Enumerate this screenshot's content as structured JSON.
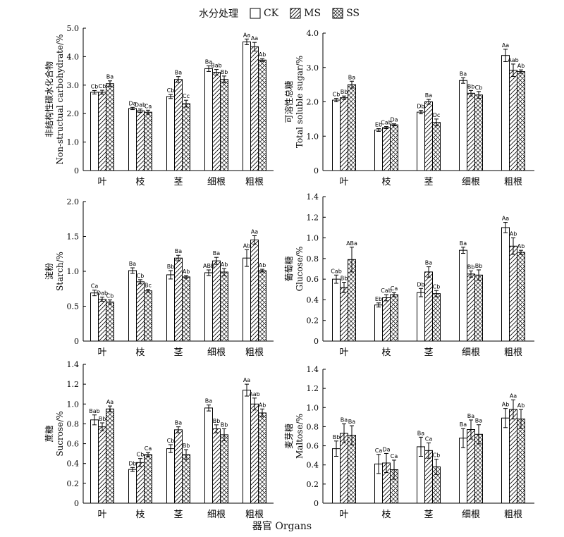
{
  "legend": {
    "title": "水分处理",
    "items": [
      {
        "label": "CK",
        "pattern": "none"
      },
      {
        "label": "MS",
        "pattern": "diag"
      },
      {
        "label": "SS",
        "pattern": "cross"
      }
    ]
  },
  "x_title": "器官 Organs",
  "chart_data": [
    {
      "type": "bar",
      "ylabel_cn": "非结构性碳水化合物",
      "ylabel_en": "Non-structual carbohydrate/%",
      "categories": [
        "叶",
        "枝",
        "茎",
        "细根",
        "粗根"
      ],
      "ylim": [
        0,
        5.0
      ],
      "yticks": [
        "0",
        "1.0",
        "2.0",
        "3.0",
        "4.0",
        "5.0"
      ],
      "series": [
        {
          "name": "CK",
          "values": [
            2.75,
            2.18,
            2.6,
            3.58,
            4.52
          ],
          "errors": [
            0.06,
            0.04,
            0.07,
            0.1,
            0.1
          ],
          "labels": [
            "Cb",
            "Da",
            "Cb",
            "Ba",
            "Aa"
          ]
        },
        {
          "name": "MS",
          "values": [
            2.75,
            2.1,
            3.2,
            3.45,
            4.35
          ],
          "errors": [
            0.07,
            0.06,
            0.1,
            0.1,
            0.15
          ],
          "labels": [
            "Cb",
            "Dab",
            "Ba",
            "Bab",
            "Aa"
          ]
        },
        {
          "name": "SS",
          "values": [
            3.05,
            2.05,
            2.35,
            3.2,
            3.88
          ],
          "errors": [
            0.1,
            0.07,
            0.12,
            0.12,
            0.05
          ],
          "labels": [
            "Ba",
            "Ca",
            "Cc",
            "Bb",
            "Ab"
          ]
        }
      ]
    },
    {
      "type": "bar",
      "ylabel_cn": "可溶性总糖",
      "ylabel_en": "Total soluble sugar/%",
      "categories": [
        "叶",
        "枝",
        "茎",
        "细根",
        "粗根"
      ],
      "ylim": [
        0,
        4.0
      ],
      "yticks": [
        "0",
        "1.0",
        "2.0",
        "3.0",
        "4.0"
      ],
      "series": [
        {
          "name": "CK",
          "values": [
            2.05,
            1.18,
            1.7,
            2.62,
            3.35
          ],
          "errors": [
            0.05,
            0.04,
            0.05,
            0.08,
            0.18
          ],
          "labels": [
            "Cb",
            "Eb",
            "Db",
            "Ba",
            "Aa"
          ]
        },
        {
          "name": "MS",
          "values": [
            2.12,
            1.25,
            2.0,
            2.25,
            2.92
          ],
          "errors": [
            0.05,
            0.03,
            0.07,
            0.08,
            0.18
          ],
          "labels": [
            "Bb",
            "Cab",
            "Ba",
            "Bb",
            "Aab"
          ]
        },
        {
          "name": "SS",
          "values": [
            2.5,
            1.33,
            1.4,
            2.2,
            2.88
          ],
          "errors": [
            0.1,
            0.03,
            0.1,
            0.1,
            0.05
          ],
          "labels": [
            "Ba",
            "Da",
            "Dc",
            "Cb",
            "Ab"
          ]
        }
      ]
    },
    {
      "type": "bar",
      "ylabel_cn": "淀粉",
      "ylabel_en": "Starch/%",
      "categories": [
        "叶",
        "枝",
        "茎",
        "细根",
        "粗根"
      ],
      "ylim": [
        0,
        2.0
      ],
      "yticks": [
        "0",
        "0.5",
        "1.0",
        "1.5",
        "2.0"
      ],
      "series": [
        {
          "name": "CK",
          "values": [
            0.69,
            1.01,
            0.95,
            0.98,
            1.19
          ],
          "errors": [
            0.04,
            0.04,
            0.06,
            0.04,
            0.12
          ],
          "labels": [
            "Ca",
            "Ba",
            "Bb",
            "ABb",
            "Ab"
          ]
        },
        {
          "name": "MS",
          "values": [
            0.6,
            0.85,
            1.19,
            1.15,
            1.45
          ],
          "errors": [
            0.03,
            0.03,
            0.04,
            0.05,
            0.06
          ],
          "labels": [
            "Dab",
            "Cb",
            "Ba",
            "Ba",
            "Aa"
          ]
        },
        {
          "name": "SS",
          "values": [
            0.56,
            0.72,
            0.92,
            0.99,
            1.01
          ],
          "errors": [
            0.03,
            0.02,
            0.02,
            0.05,
            0.02
          ],
          "labels": [
            "Cb",
            "Bc",
            "Ab",
            "Ab",
            "Ab"
          ]
        }
      ]
    },
    {
      "type": "bar",
      "ylabel_cn": "葡萄糖",
      "ylabel_en": "Glucose/%",
      "categories": [
        "叶",
        "枝",
        "茎",
        "细根",
        "粗根"
      ],
      "ylim": [
        0,
        1.4
      ],
      "yticks": [
        "0",
        "0.2",
        "0.4",
        "0.6",
        "0.8",
        "1.0",
        "1.2",
        "1.4"
      ],
      "series": [
        {
          "name": "CK",
          "values": [
            0.6,
            0.35,
            0.47,
            0.88,
            1.1
          ],
          "errors": [
            0.04,
            0.02,
            0.04,
            0.03,
            0.05
          ],
          "labels": [
            "Cab",
            "Eb",
            "Db",
            "Ba",
            "Aa"
          ]
        },
        {
          "name": "MS",
          "values": [
            0.52,
            0.42,
            0.67,
            0.65,
            0.92
          ],
          "errors": [
            0.05,
            0.03,
            0.05,
            0.03,
            0.08
          ],
          "labels": [
            "Bb",
            "Cab",
            "Ba",
            "Bb",
            "Ab"
          ]
        },
        {
          "name": "SS",
          "values": [
            0.79,
            0.45,
            0.46,
            0.64,
            0.86
          ],
          "errors": [
            0.12,
            0.02,
            0.03,
            0.05,
            0.02
          ],
          "labels": [
            "ABa",
            "Ca",
            "Cb",
            "Bb",
            "Ab"
          ]
        }
      ]
    },
    {
      "type": "bar",
      "ylabel_cn": "蔗糖",
      "ylabel_en": "Sucrose/%",
      "categories": [
        "叶",
        "枝",
        "茎",
        "细根",
        "粗根"
      ],
      "ylim": [
        0,
        1.4
      ],
      "yticks": [
        "0",
        "0.2",
        "0.4",
        "0.6",
        "0.8",
        "1.0",
        "1.2",
        "1.4"
      ],
      "series": [
        {
          "name": "CK",
          "values": [
            0.84,
            0.34,
            0.55,
            0.96,
            1.14
          ],
          "errors": [
            0.05,
            0.02,
            0.04,
            0.03,
            0.06
          ],
          "labels": [
            "Bab",
            "Db",
            "Cb",
            "Ba",
            "Aa"
          ]
        },
        {
          "name": "MS",
          "values": [
            0.77,
            0.41,
            0.74,
            0.75,
            1.0
          ],
          "errors": [
            0.04,
            0.04,
            0.03,
            0.04,
            0.06
          ],
          "labels": [
            "Bb",
            "Cb",
            "Ba",
            "Bb",
            "Aab"
          ]
        },
        {
          "name": "SS",
          "values": [
            0.95,
            0.49,
            0.49,
            0.69,
            0.91
          ],
          "errors": [
            0.03,
            0.02,
            0.05,
            0.06,
            0.04
          ],
          "labels": [
            "Aa",
            "Ca",
            "Bb",
            "Bb",
            "Ab"
          ]
        }
      ]
    },
    {
      "type": "bar",
      "ylabel_cn": "麦芽糖",
      "ylabel_en": "Maltose/%",
      "categories": [
        "叶",
        "枝",
        "茎",
        "细根",
        "粗根"
      ],
      "ylim": [
        0,
        1.4
      ],
      "yticks": [
        "0",
        "0.2",
        "0.4",
        "0.6",
        "0.8",
        "1.0",
        "1.2",
        "1.4"
      ],
      "series": [
        {
          "name": "CK",
          "values": [
            0.57,
            0.41,
            0.59,
            0.68,
            0.89
          ],
          "errors": [
            0.08,
            0.1,
            0.1,
            0.1,
            0.1
          ],
          "labels": [
            "Bb",
            "Ca",
            "Ba",
            "Ba",
            "Ab"
          ]
        },
        {
          "name": "MS",
          "values": [
            0.73,
            0.42,
            0.55,
            0.77,
            0.98
          ],
          "errors": [
            0.1,
            0.1,
            0.08,
            0.1,
            0.1
          ],
          "labels": [
            "Ba",
            "Da",
            "Ca",
            "Ba",
            "Aa"
          ]
        },
        {
          "name": "SS",
          "values": [
            0.71,
            0.35,
            0.38,
            0.72,
            0.88
          ],
          "errors": [
            0.1,
            0.1,
            0.08,
            0.1,
            0.1
          ],
          "labels": [
            "Ba",
            "Ca",
            "Cb",
            "Ba",
            "Ab"
          ]
        }
      ]
    }
  ]
}
